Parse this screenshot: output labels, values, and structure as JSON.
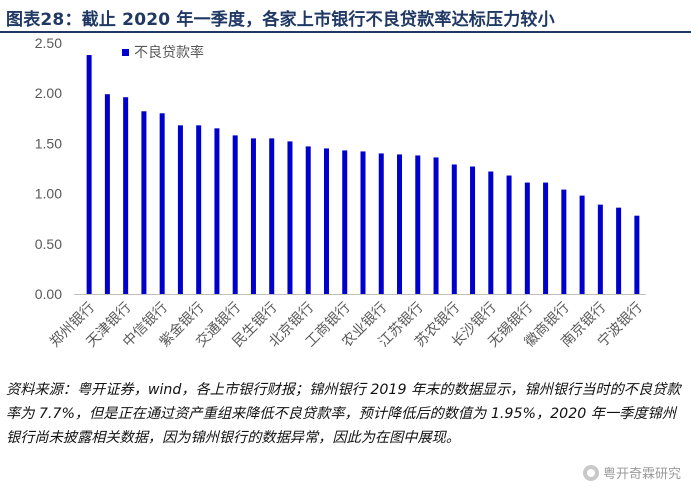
{
  "title": "图表28：截止 2020 年一季度，各家上市银行不良贷款率达标压力较小",
  "chart_data": {
    "type": "bar",
    "title": "图表28：截止 2020 年一季度，各家上市银行不良贷款率达标压力较小",
    "xlabel": "",
    "ylabel": "",
    "ylim": [
      0,
      2.5
    ],
    "yticks": [
      "0.00",
      "0.50",
      "1.00",
      "1.50",
      "2.00",
      "2.50"
    ],
    "legend": "top-left",
    "grid": false,
    "series": [
      {
        "name": "不良贷款率",
        "color": "#0000cc",
        "values": [
          2.38,
          1.99,
          1.96,
          1.82,
          1.8,
          1.68,
          1.68,
          1.65,
          1.58,
          1.55,
          1.55,
          1.52,
          1.47,
          1.45,
          1.43,
          1.42,
          1.4,
          1.39,
          1.38,
          1.36,
          1.29,
          1.27,
          1.22,
          1.18,
          1.11,
          1.11,
          1.04,
          0.98,
          0.89,
          0.86,
          0.78
        ]
      }
    ],
    "categories": [
      "郑州银行",
      "",
      "天津银行",
      "",
      "中信银行",
      "",
      "紫金银行",
      "",
      "交通银行",
      "",
      "民生银行",
      "",
      "北京银行",
      "",
      "工商银行",
      "",
      "农业银行",
      "",
      "江苏银行",
      "",
      "苏农银行",
      "",
      "长沙银行",
      "",
      "无锡银行",
      "",
      "徽商银行",
      "",
      "南京银行",
      "",
      "宁波银行"
    ]
  },
  "source_note": "资料来源：粤开证券，wind，各上市银行财报；锦州银行 2019 年末的数据显示，锦州银行当时的不良贷款率为 7.7%，但是正在通过资产重组来降低不良贷款率，预计降低后的数值为 1.95%，2020 年一季度锦州银行尚未披露相关数据，因为锦州银行的数据异常，因此为在图中展现。",
  "watermark": "粤开奇霖研究"
}
